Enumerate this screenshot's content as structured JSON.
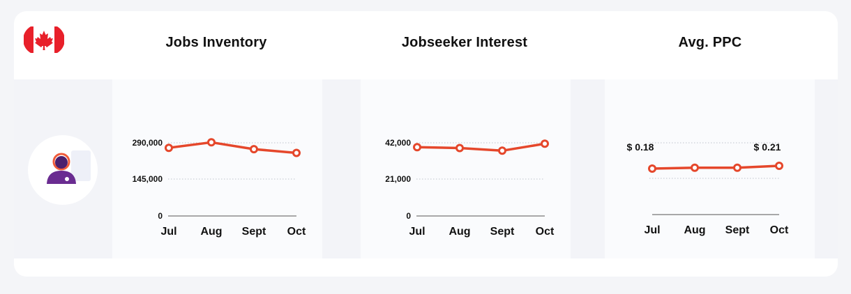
{
  "header": {
    "country_flag_icon": "canada-flag-icon",
    "avatar_icon": "support-agent-headset-icon"
  },
  "colors": {
    "line": "#e5472b",
    "flag_red": "#e8202a",
    "avatar_purple": "#6a2c91",
    "avatar_headset": "#ef5a3a"
  },
  "chart_data": [
    {
      "type": "line",
      "title": "Jobs Inventory",
      "categories": [
        "Jul",
        "Aug",
        "Sept",
        "Oct"
      ],
      "values": [
        270000,
        292000,
        265000,
        250000
      ],
      "y_ticks": [
        "290,000",
        "145,000",
        "0"
      ],
      "ylim": [
        0,
        290000
      ],
      "grid": "dotted horizontal"
    },
    {
      "type": "line",
      "title": "Jobseeker Interest",
      "categories": [
        "Jul",
        "Aug",
        "Sept",
        "Oct"
      ],
      "values": [
        39500,
        39000,
        37500,
        41500
      ],
      "y_ticks": [
        "42,000",
        "21,000",
        "0"
      ],
      "ylim": [
        0,
        42000
      ],
      "grid": "dotted horizontal"
    },
    {
      "type": "line",
      "title": "Avg. PPC",
      "categories": [
        "Jul",
        "Aug",
        "Sept",
        "Oct"
      ],
      "values": [
        0.18,
        0.19,
        0.19,
        0.21
      ],
      "data_labels": [
        "$ 0.18",
        "",
        "",
        "$ 0.21"
      ],
      "grid": "dotted horizontal"
    }
  ]
}
